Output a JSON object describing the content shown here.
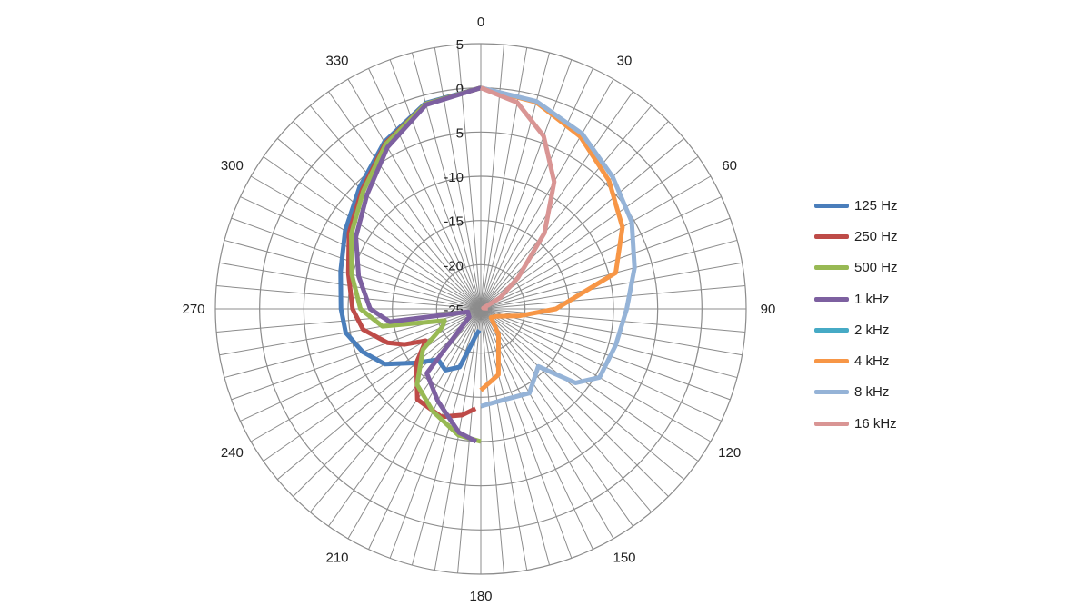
{
  "chart_data": {
    "type": "line",
    "polar": true,
    "title": "",
    "angle_unit": "degrees",
    "angle_ticks": [
      0,
      30,
      60,
      90,
      120,
      150,
      180,
      210,
      240,
      270,
      300,
      330
    ],
    "angle_grid_step": 5,
    "radial_axis": {
      "min": -25,
      "max": 5,
      "ticks": [
        5,
        0,
        -5,
        -10,
        -15,
        -20,
        -25
      ]
    },
    "grid": true,
    "legend_position": "right",
    "series": [
      {
        "name": "125 Hz",
        "color": "#4a7ebb",
        "points": [
          [
            0,
            0
          ],
          [
            -15,
            -0.9
          ],
          [
            -30,
            -3.2
          ],
          [
            -45,
            -5.6
          ],
          [
            -60,
            -7.3
          ],
          [
            -75,
            -8.6
          ],
          [
            -90,
            -9.2
          ],
          [
            -100,
            -9.5
          ],
          [
            -110,
            -10.8
          ],
          [
            -120,
            -12.5
          ],
          [
            -130,
            -15.5
          ],
          [
            -140,
            -17.5
          ],
          [
            -150,
            -17
          ],
          [
            -160,
            -18
          ],
          [
            -170,
            -22
          ],
          [
            -176,
            -22.6
          ]
        ]
      },
      {
        "name": "250 Hz",
        "color": "#be4b48",
        "points": [
          [
            0,
            0
          ],
          [
            -15,
            -1
          ],
          [
            -30,
            -3.4
          ],
          [
            -45,
            -6
          ],
          [
            -60,
            -7.8
          ],
          [
            -75,
            -9.5
          ],
          [
            -90,
            -10.5
          ],
          [
            -100,
            -11.5
          ],
          [
            -110,
            -13.8
          ],
          [
            -115,
            -15.5
          ],
          [
            -120,
            -17.8
          ],
          [
            -130,
            -15.5
          ],
          [
            -145,
            -12.5
          ],
          [
            -160,
            -12
          ],
          [
            -170,
            -12.8
          ],
          [
            -177,
            -13.7
          ]
        ]
      },
      {
        "name": "500 Hz",
        "color": "#98b954",
        "points": [
          [
            0,
            0
          ],
          [
            -15,
            -1
          ],
          [
            -30,
            -3.5
          ],
          [
            -45,
            -6.2
          ],
          [
            -60,
            -8.1
          ],
          [
            -75,
            -9.9
          ],
          [
            -90,
            -11.4
          ],
          [
            -100,
            -13.7
          ],
          [
            -108,
            -20.7
          ],
          [
            -115,
            -20.2
          ],
          [
            -125,
            -17
          ],
          [
            -140,
            -13.8
          ],
          [
            -155,
            -12.2
          ],
          [
            -170,
            -10.5
          ],
          [
            -180,
            -10
          ]
        ]
      },
      {
        "name": "1 kHz",
        "color": "#7d60a0",
        "points": [
          [
            0,
            0
          ],
          [
            -15,
            -1.1
          ],
          [
            -30,
            -3.9
          ],
          [
            -45,
            -6.8
          ],
          [
            -60,
            -8.7
          ],
          [
            -75,
            -10.7
          ],
          [
            -90,
            -12.5
          ],
          [
            -98,
            -14.6
          ],
          [
            -103,
            -23.5
          ],
          [
            -125,
            -23.4
          ],
          [
            -140,
            -15.5
          ],
          [
            -155,
            -13.5
          ],
          [
            -170,
            -10.8
          ],
          [
            -178,
            -10
          ]
        ]
      },
      {
        "name": "2 kHz",
        "color": "#46aac5",
        "points": []
      },
      {
        "name": "4 kHz",
        "color": "#f79646",
        "points": [
          [
            0,
            0
          ],
          [
            15,
            -0.8
          ],
          [
            30,
            -2.5
          ],
          [
            45,
            -4.5
          ],
          [
            60,
            -6.5
          ],
          [
            75,
            -9.2
          ],
          [
            90,
            -16.5
          ],
          [
            100,
            -20.5
          ],
          [
            115,
            -23
          ],
          [
            130,
            -23.5
          ],
          [
            145,
            -21.5
          ],
          [
            165,
            -17.3
          ],
          [
            180,
            -15.8
          ]
        ]
      },
      {
        "name": "8 kHz",
        "color": "#95b3d7",
        "points": [
          [
            0,
            0
          ],
          [
            15,
            -0.7
          ],
          [
            30,
            -2.1
          ],
          [
            45,
            -3.9
          ],
          [
            60,
            -5.3
          ],
          [
            75,
            -7
          ],
          [
            90,
            -8.5
          ],
          [
            105,
            -9.2
          ],
          [
            120,
            -9.5
          ],
          [
            128,
            -11.4
          ],
          [
            135,
            -15.8
          ],
          [
            150,
            -14
          ],
          [
            165,
            -14.4
          ],
          [
            180,
            -14
          ]
        ]
      },
      {
        "name": "16 kHz",
        "color": "#d99594",
        "points": [
          [
            0,
            0
          ],
          [
            10,
            -1.3
          ],
          [
            20,
            -4.2
          ],
          [
            30,
            -8.4
          ],
          [
            40,
            -13.8
          ],
          [
            50,
            -19.5
          ],
          [
            60,
            -22.5
          ],
          [
            72,
            -24.7
          ],
          [
            85,
            -24.2
          ]
        ]
      }
    ]
  }
}
